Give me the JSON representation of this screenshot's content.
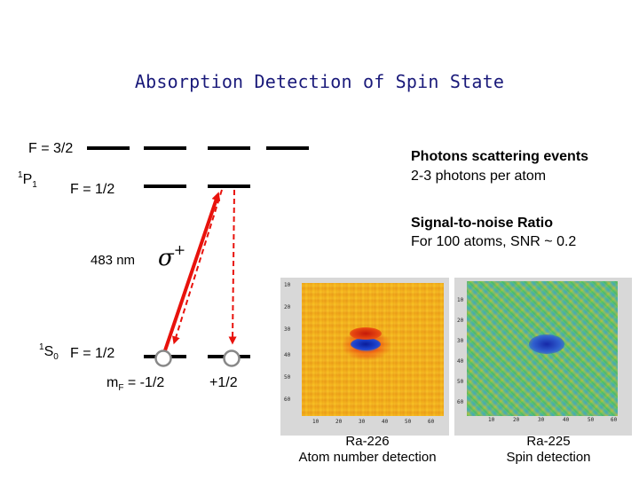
{
  "title": "Absorption Detection of Spin State",
  "levels": {
    "p_f32": "F = 3/2",
    "p_state_sup": "1",
    "p_state_main": "P",
    "p_state_sub": "1",
    "p_f12": "F = 1/2",
    "s_state_sup": "1",
    "s_state_main": "S",
    "s_state_sub": "0",
    "s_f12": "F = 1/2",
    "mf_left_main": "m",
    "mf_left_sub": "F",
    "mf_left_value": " = -1/2",
    "mf_right": "+1/2"
  },
  "transition": {
    "wavelength": "483 nm",
    "sigma_symbol": "σ",
    "sigma_sup": "+"
  },
  "notes": {
    "scattering_title": "Photons scattering events",
    "scattering_detail": "2-3 photons per atom",
    "snr_title": "Signal-to-noise Ratio",
    "snr_detail": "For 100 atoms, SNR ~ 0.2"
  },
  "images": {
    "left_caption_line1": "Ra-226",
    "left_caption_line2": "Atom number detection",
    "right_caption_line1": "Ra-225",
    "right_caption_line2": "Spin detection",
    "left_ticks": [
      "10",
      "20",
      "30",
      "40",
      "50",
      "60"
    ],
    "right_ticks": [
      "10",
      "20",
      "30",
      "40",
      "50",
      "60"
    ],
    "bottom_ticks_left": [
      "10",
      "20",
      "30",
      "40",
      "50",
      "60"
    ],
    "bottom_ticks_right": [
      "10",
      "20",
      "30",
      "40",
      "50",
      "60"
    ]
  },
  "colors": {
    "arrow_solid": "#e8120c",
    "arrow_dashed": "#e8120c",
    "title": "#1a1a7a",
    "noise_base": "#f0a020"
  }
}
